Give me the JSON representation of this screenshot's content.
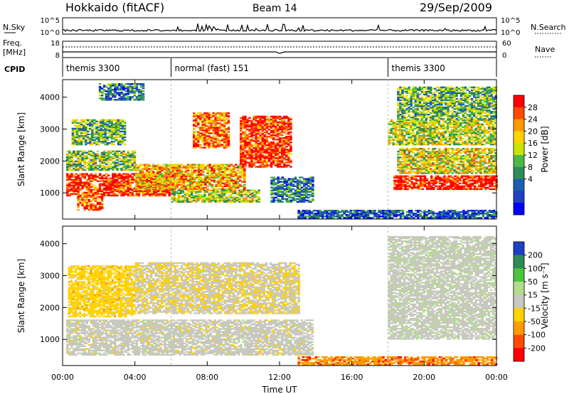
{
  "header": {
    "station": "Hokkaido (fitACF)",
    "beam": "Beam 14",
    "date": "29/Sep/2009"
  },
  "params": {
    "nsky_label": "N.Sky",
    "nsky_ticks": [
      "10^5",
      "10^0"
    ],
    "nsearch_label": "N.Search",
    "nsearch_ticks": [
      "10^5",
      "10^0"
    ],
    "freq_label_1": "Freq.",
    "freq_label_2": "[MHz]",
    "freq_ticks": [
      "18",
      "8"
    ],
    "nave_label": "Nave",
    "nave_ticks": [
      "60",
      "0"
    ],
    "cpid_label": "CPID",
    "cpid_segments": [
      {
        "text": "themis 3300",
        "start_hour": 0.0
      },
      {
        "text": "normal (fast) 151",
        "start_hour": 6.0
      },
      {
        "text": "themis 3300",
        "start_hour": 18.0
      }
    ]
  },
  "chart_data": [
    {
      "type": "heatmap",
      "name": "power",
      "xlabel": "",
      "ylabel": "Slant Range [km]",
      "xlim": [
        0,
        24
      ],
      "ylim": [
        180,
        4550
      ],
      "yticks": [
        "1000",
        "2000",
        "3000",
        "4000"
      ],
      "colorbar_label": "Power [dB]",
      "colorbar_ticks": [
        "28",
        "24",
        "20",
        "16",
        "12",
        "8",
        "4"
      ],
      "colorbar_colors": [
        "#ff0000",
        "#ff4a00",
        "#ff9a00",
        "#ffd200",
        "#c8e400",
        "#4cb944",
        "#2e8b57",
        "#1a5fb0",
        "#1f3fc4",
        "#0000ff"
      ],
      "echo_bands": [
        {
          "t0": 0.2,
          "t1": 6.2,
          "r0": 900,
          "r1": 1600,
          "level": 0.9
        },
        {
          "t0": 0.2,
          "t1": 4.0,
          "r0": 1700,
          "r1": 2300,
          "level": 0.5
        },
        {
          "t0": 0.5,
          "t1": 3.5,
          "r0": 2500,
          "r1": 3300,
          "level": 0.45
        },
        {
          "t0": 0.8,
          "t1": 2.2,
          "r0": 450,
          "r1": 900,
          "level": 0.85
        },
        {
          "t0": 4.0,
          "t1": 10.0,
          "r0": 1100,
          "r1": 1900,
          "level": 0.7
        },
        {
          "t0": 6.0,
          "t1": 10.8,
          "r0": 700,
          "r1": 1100,
          "level": 0.55
        },
        {
          "t0": 7.2,
          "t1": 9.2,
          "r0": 2400,
          "r1": 3500,
          "level": 0.8
        },
        {
          "t0": 9.8,
          "t1": 12.6,
          "r0": 1800,
          "r1": 3400,
          "level": 0.92
        },
        {
          "t0": 11.5,
          "t1": 13.8,
          "r0": 700,
          "r1": 1500,
          "level": 0.3
        },
        {
          "t0": 18.3,
          "t1": 24.0,
          "r0": 1100,
          "r1": 1550,
          "level": 0.95
        },
        {
          "t0": 18.5,
          "t1": 24.0,
          "r0": 1600,
          "r1": 2400,
          "level": 0.6
        },
        {
          "t0": 18.0,
          "t1": 24.0,
          "r0": 2500,
          "r1": 3300,
          "level": 0.55
        },
        {
          "t0": 18.5,
          "t1": 24.0,
          "r0": 3300,
          "r1": 4300,
          "level": 0.45
        },
        {
          "t0": 13.0,
          "t1": 24.0,
          "r0": 200,
          "r1": 450,
          "level": 0.2
        },
        {
          "t0": 2.0,
          "t1": 4.5,
          "r0": 3900,
          "r1": 4400,
          "level": 0.3
        }
      ]
    },
    {
      "type": "heatmap",
      "name": "velocity",
      "xlabel": "Time UT",
      "ylabel": "Slant Range [km]",
      "xlim": [
        0,
        24
      ],
      "ylim": [
        180,
        4550
      ],
      "xticks": [
        "00:00",
        "04:00",
        "08:00",
        "12:00",
        "16:00",
        "20:00",
        "00:00"
      ],
      "yticks": [
        "1000",
        "2000",
        "3000",
        "4000"
      ],
      "colorbar_label": "Velocity [m s⁻¹]",
      "colorbar_ticks": [
        "200",
        "100",
        "50",
        "15",
        "-15",
        "-50",
        "-100",
        "-200"
      ],
      "colorbar_colors": [
        "#1f3fc4",
        "#2e8b57",
        "#4cc43c",
        "#b4dc8c",
        "#c8c8c0",
        "#ffd200",
        "#ff9a00",
        "#ff4a00",
        "#ff0000"
      ],
      "echo_bands": [
        {
          "t0": 0.2,
          "t1": 13.8,
          "r0": 500,
          "r1": 1600,
          "level": 0.0
        },
        {
          "t0": 0.3,
          "t1": 4.0,
          "r0": 1700,
          "r1": 3300,
          "level": -0.3
        },
        {
          "t0": 4.0,
          "t1": 13.0,
          "r0": 1800,
          "r1": 3400,
          "level": -0.1
        },
        {
          "t0": 18.0,
          "t1": 24.0,
          "r0": 1000,
          "r1": 4200,
          "level": 0.05
        },
        {
          "t0": 13.0,
          "t1": 24.0,
          "r0": 200,
          "r1": 450,
          "level": -0.6
        }
      ]
    }
  ]
}
